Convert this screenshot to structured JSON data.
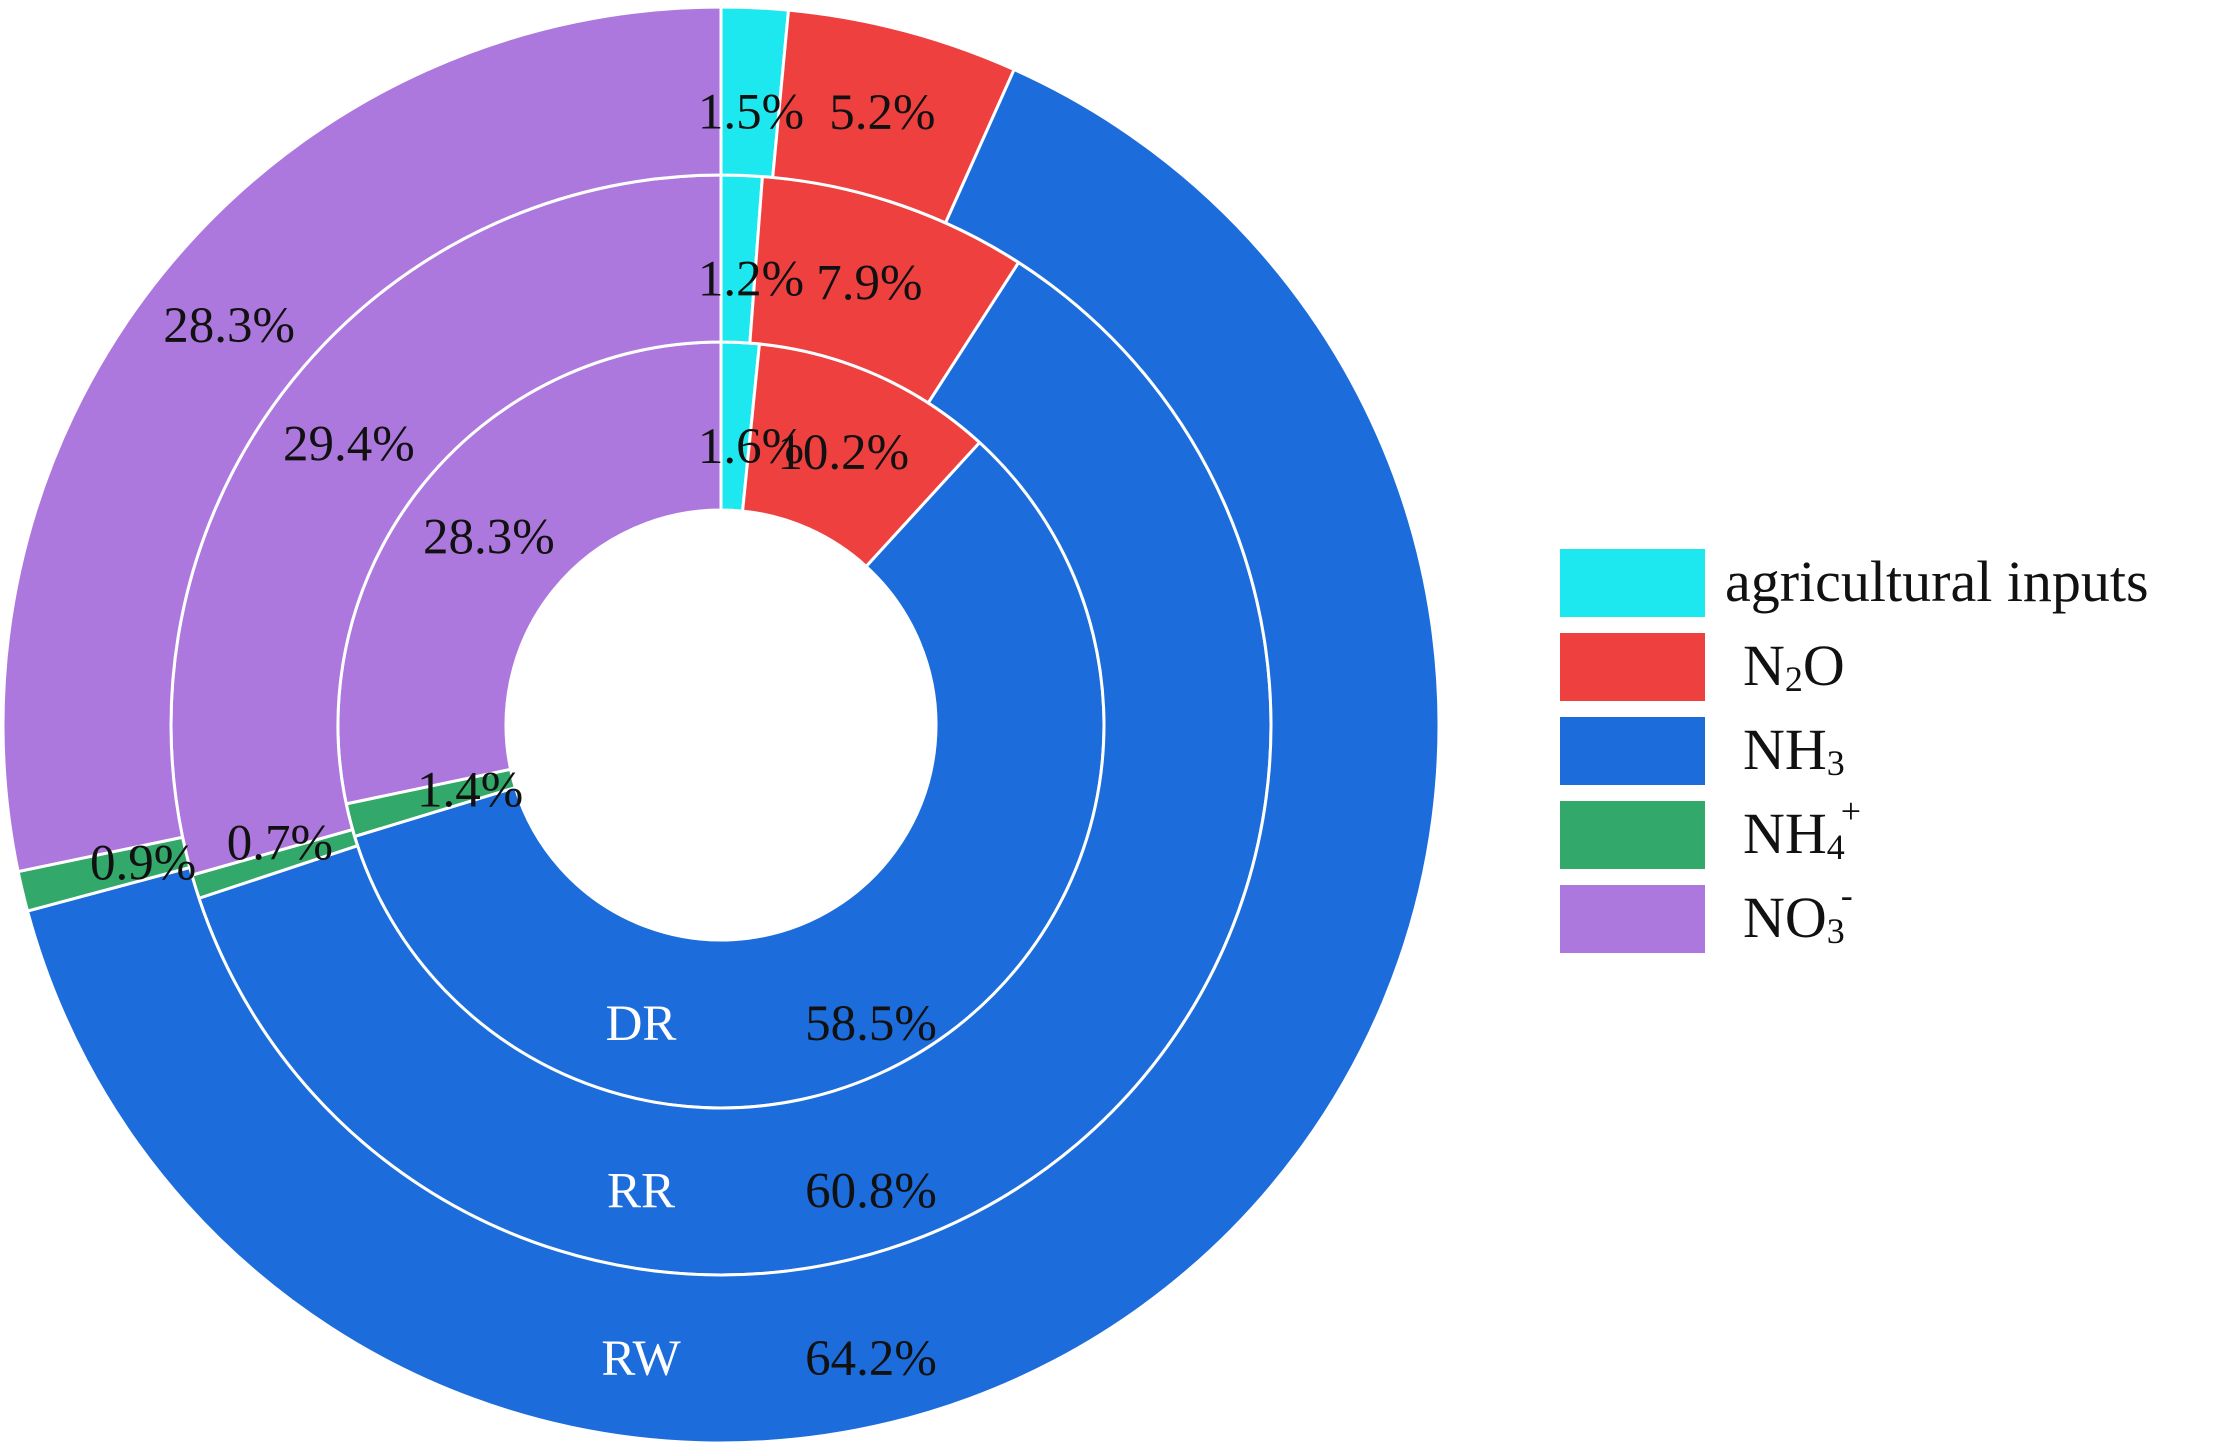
{
  "chart_data": {
    "type": "pie",
    "style": "nested donut, clockwise from 12 o'clock",
    "categories": [
      "agricultural inputs",
      "N2O",
      "NH3",
      "NH4+",
      "NO3-"
    ],
    "colors": {
      "agricultural inputs": "#1de8ef",
      "N2O": "#ef4040",
      "NH3": "#1c6cdc",
      "NH4+": "#33a86b",
      "NO3-": "#ad78dd"
    },
    "legend": {
      "position": "right",
      "items": [
        {
          "key": "agricultural inputs",
          "main": "agricultural inputs",
          "sub": "",
          "tail": "",
          "sub_kind": "none"
        },
        {
          "key": "N2O",
          "main": "N",
          "sub": "2",
          "tail": "O",
          "sub_kind": "sub"
        },
        {
          "key": "NH3",
          "main": "NH",
          "sub": "3",
          "tail": "",
          "sub_kind": "sub"
        },
        {
          "key": "NH4+",
          "main": "NH",
          "sub": "4",
          "tail": "+",
          "sub_kind": "subsup"
        },
        {
          "key": "NO3-",
          "main": "NO",
          "sub": "3",
          "tail": "-",
          "sub_kind": "subsup"
        }
      ]
    },
    "series": [
      {
        "name": "DR",
        "values": [
          1.6,
          10.2,
          58.5,
          1.4,
          28.3
        ],
        "labels": [
          "1.6%",
          "10.2%",
          "58.5%",
          "1.4%",
          "28.3%"
        ]
      },
      {
        "name": "RR",
        "values": [
          1.2,
          7.9,
          60.8,
          0.7,
          29.4
        ],
        "labels": [
          "1.2%",
          "7.9%",
          "60.8%",
          "0.7%",
          "29.4%"
        ]
      },
      {
        "name": "RW",
        "values": [
          1.5,
          5.2,
          64.2,
          0.9,
          28.3
        ],
        "labels": [
          "1.5%",
          "5.2%",
          "64.2%",
          "0.9%",
          "28.3%"
        ]
      }
    ]
  }
}
